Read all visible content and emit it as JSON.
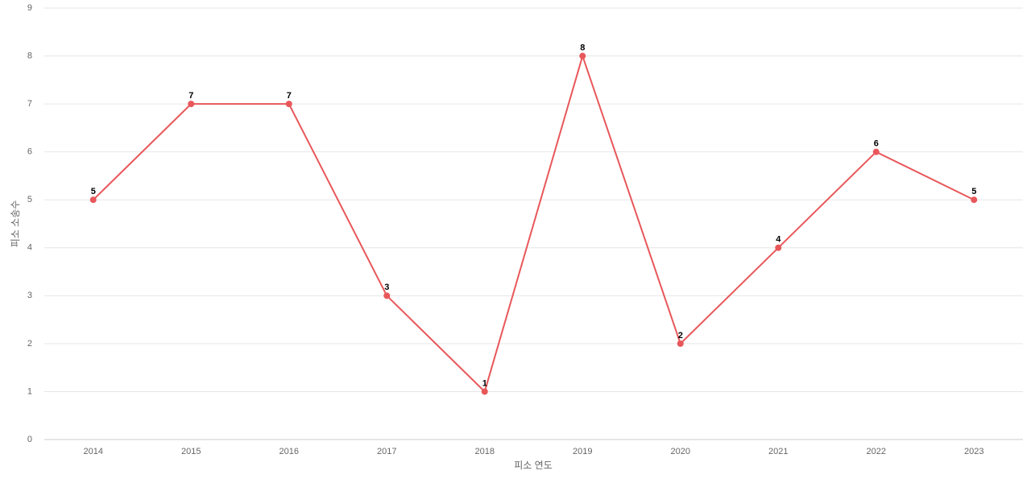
{
  "chart_data": {
    "type": "line",
    "x_label": "피소 연도",
    "y_label": "피소 소송수",
    "categories": [
      "2014",
      "2015",
      "2016",
      "2017",
      "2018",
      "2019",
      "2020",
      "2021",
      "2022",
      "2023"
    ],
    "series": [
      {
        "color": "#e8575a",
        "values": [
          5,
          7,
          7,
          3,
          1,
          8,
          2,
          4,
          6,
          5
        ]
      }
    ],
    "ylim": [
      0,
      9
    ],
    "yticks": [
      0,
      1,
      2,
      3,
      4,
      5,
      6,
      7,
      8,
      9
    ],
    "grid": true
  }
}
